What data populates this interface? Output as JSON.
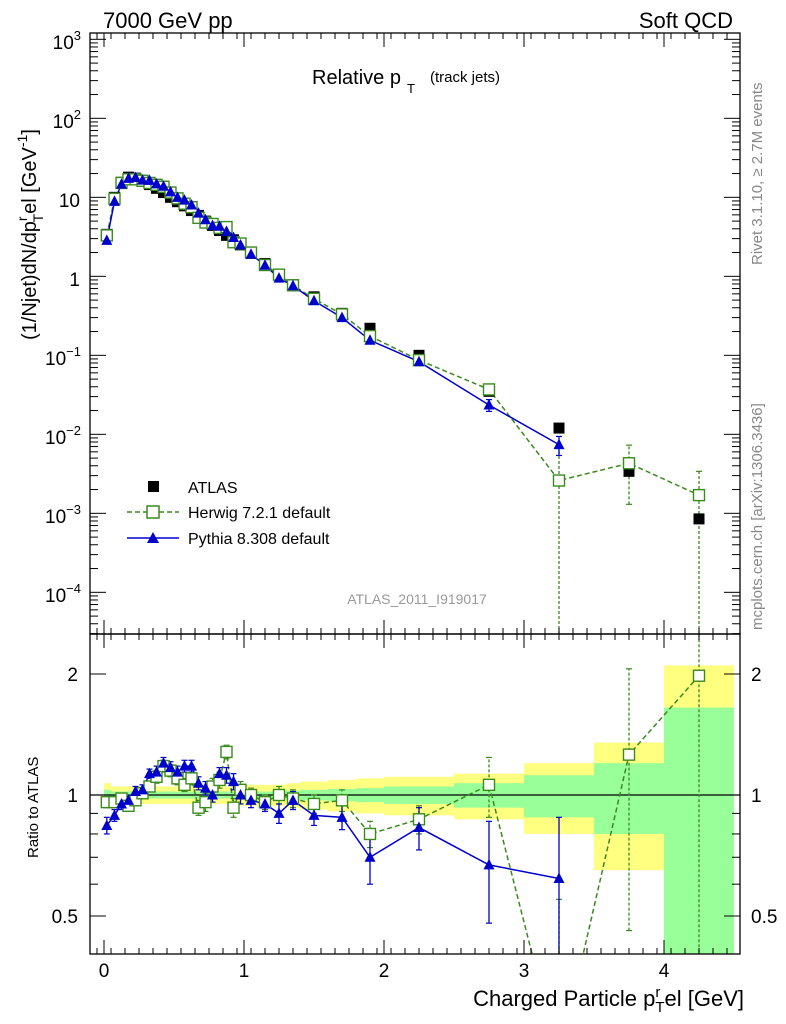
{
  "header": {
    "energy_label": "7000 GeV pp",
    "process_label": "Soft QCD",
    "plot_title_main": "Relative p",
    "plot_title_sub": "T",
    "plot_title_extra": "(track jets)",
    "analysis_id": "ATLAS_2011_I919017",
    "rivet_label": "Rivet 3.1.10, ≥ 2.7M events",
    "mcplots_label": "mcplots.cern.ch [arXiv:1306.3436]"
  },
  "axes": {
    "main_ylabel": "(1/Njet)dN/dp",
    "main_ylabel_sub": "T",
    "main_ylabel_sup": "r",
    "main_ylabel_tail": "el [GeV",
    "main_ylabel_unit_sup": "-1",
    "main_ylabel_close": "]",
    "ratio_ylabel": "Ratio to ATLAS",
    "xlabel": "Charged Particle p",
    "xlabel_sub": "T",
    "xlabel_sup": "r",
    "xlabel_tail": "el [GeV]",
    "main_yticks": [
      {
        "base": "10",
        "exp": "3"
      },
      {
        "base": "10",
        "exp": "2"
      },
      {
        "base": "10",
        "exp": ""
      },
      {
        "base": "1",
        "exp": ""
      },
      {
        "base": "10",
        "exp": "−1"
      },
      {
        "base": "10",
        "exp": "−2"
      },
      {
        "base": "10",
        "exp": "−3"
      },
      {
        "base": "10",
        "exp": "−4"
      }
    ],
    "ratio_yticks": [
      "2",
      "1",
      "0.5"
    ],
    "xticks": [
      "0",
      "1",
      "2",
      "3",
      "4"
    ]
  },
  "legend": {
    "atlas": "ATLAS",
    "herwig": "Herwig 7.2.1 default",
    "pythia": "Pythia 8.308 default"
  },
  "colors": {
    "atlas": "#000000",
    "herwig": "#3a8a1e",
    "pythia": "#0000cc",
    "band_inner": "#99ff99",
    "band_outer": "#ffff80"
  },
  "chart_data": {
    "type": "scatter",
    "x_range": [
      -0.1,
      4.55
    ],
    "y_range_main": [
      3e-05,
      1200
    ],
    "y_scale_main": "log",
    "y_range_ratio": [
      0.35,
      2.3
    ],
    "y_scale_ratio": "log",
    "x": [
      0.02,
      0.075,
      0.125,
      0.175,
      0.225,
      0.275,
      0.325,
      0.375,
      0.425,
      0.475,
      0.525,
      0.575,
      0.625,
      0.675,
      0.725,
      0.775,
      0.825,
      0.875,
      0.925,
      0.975,
      1.05,
      1.15,
      1.25,
      1.35,
      1.5,
      1.7,
      1.9,
      2.25,
      2.75,
      3.25,
      3.75,
      4.25
    ],
    "series": [
      {
        "name": "ATLAS",
        "values": [
          3.4,
          10.0,
          15.5,
          18.0,
          17.5,
          16.0,
          14.5,
          13.0,
          11.5,
          10.0,
          8.8,
          7.8,
          6.8,
          5.9,
          5.0,
          4.4,
          3.8,
          3.3,
          2.9,
          2.5,
          1.95,
          1.45,
          1.05,
          0.78,
          0.55,
          0.34,
          0.22,
          0.1,
          0.035,
          0.012,
          0.0034,
          0.00085
        ]
      },
      {
        "name": "Herwig 7.2.1 default",
        "values": [
          3.3,
          9.6,
          15.2,
          16.9,
          16.9,
          16.2,
          15.2,
          14.4,
          13.6,
          11.5,
          9.7,
          8.3,
          7.5,
          5.5,
          4.8,
          4.6,
          4.1,
          4.2,
          2.7,
          2.6,
          2.0,
          1.39,
          1.05,
          0.77,
          0.52,
          0.33,
          0.175,
          0.087,
          0.037,
          0.0026,
          0.0043,
          0.0017
        ],
        "errors": [
          0.1,
          0.2,
          0.3,
          0.3,
          0.3,
          0.3,
          0.3,
          0.3,
          0.3,
          0.3,
          0.2,
          0.2,
          0.2,
          0.2,
          0.2,
          0.2,
          0.2,
          0.2,
          0.1,
          0.1,
          0.05,
          0.04,
          0.03,
          0.02,
          0.02,
          0.01,
          0.01,
          0.006,
          0.005,
          0.004,
          0.003,
          0.0017
        ]
      },
      {
        "name": "Pythia 8.308 default",
        "values": [
          2.85,
          8.9,
          14.7,
          17.4,
          17.8,
          16.5,
          16.4,
          14.8,
          13.8,
          11.7,
          10.0,
          9.2,
          8.0,
          6.3,
          5.2,
          4.4,
          4.3,
          3.7,
          3.1,
          2.5,
          1.9,
          1.38,
          0.95,
          0.76,
          0.49,
          0.3,
          0.155,
          0.083,
          0.0235,
          0.0074
        ],
        "errors": [
          0.1,
          0.2,
          0.3,
          0.3,
          0.3,
          0.3,
          0.3,
          0.3,
          0.3,
          0.3,
          0.2,
          0.2,
          0.2,
          0.2,
          0.2,
          0.2,
          0.2,
          0.2,
          0.1,
          0.1,
          0.05,
          0.04,
          0.03,
          0.02,
          0.02,
          0.01,
          0.01,
          0.006,
          0.004,
          0.002
        ]
      }
    ],
    "ratio": {
      "herwig": [
        0.96,
        0.96,
        0.98,
        0.94,
        0.97,
        1.01,
        1.05,
        1.11,
        1.18,
        1.15,
        1.1,
        1.06,
        1.1,
        0.93,
        0.96,
        1.05,
        1.09,
        1.28,
        0.93,
        1.03,
        1.0,
        0.96,
        1.0,
        0.98,
        0.95,
        0.97,
        0.8,
        0.87,
        1.06,
        0.22,
        1.26,
        1.98
      ],
      "herwig_err": [
        0.03,
        0.03,
        0.03,
        0.03,
        0.03,
        0.03,
        0.03,
        0.04,
        0.04,
        0.04,
        0.04,
        0.04,
        0.04,
        0.04,
        0.05,
        0.05,
        0.05,
        0.05,
        0.05,
        0.05,
        0.04,
        0.04,
        0.05,
        0.05,
        0.05,
        0.06,
        0.06,
        0.07,
        0.18,
        0.33,
        0.8,
        1.7
      ],
      "pythia": [
        0.84,
        0.89,
        0.95,
        0.97,
        1.02,
        1.03,
        1.13,
        1.14,
        1.2,
        1.17,
        1.14,
        1.18,
        1.18,
        1.07,
        1.04,
        1.0,
        1.13,
        1.12,
        1.08,
        1.0,
        0.97,
        0.95,
        0.9,
        0.97,
        0.89,
        0.88,
        0.7,
        0.83,
        0.67,
        0.62
      ],
      "pythia_err": [
        0.04,
        0.03,
        0.03,
        0.03,
        0.03,
        0.03,
        0.03,
        0.04,
        0.04,
        0.04,
        0.04,
        0.04,
        0.04,
        0.04,
        0.04,
        0.04,
        0.04,
        0.05,
        0.05,
        0.05,
        0.04,
        0.04,
        0.05,
        0.05,
        0.05,
        0.06,
        0.1,
        0.1,
        0.19,
        0.26
      ],
      "band_edges": [
        0.0,
        0.05,
        0.1,
        0.15,
        0.2,
        0.25,
        0.3,
        0.35,
        0.4,
        0.45,
        0.5,
        0.55,
        0.6,
        0.65,
        0.7,
        0.75,
        0.8,
        0.85,
        0.9,
        0.95,
        1.0,
        1.1,
        1.2,
        1.3,
        1.4,
        1.6,
        1.8,
        2.0,
        2.5,
        3.0,
        3.5,
        4.0,
        4.5
      ],
      "band_inner": [
        0.03,
        0.02,
        0.02,
        0.02,
        0.02,
        0.02,
        0.02,
        0.02,
        0.02,
        0.02,
        0.02,
        0.02,
        0.02,
        0.02,
        0.02,
        0.02,
        0.02,
        0.02,
        0.02,
        0.02,
        0.02,
        0.02,
        0.02,
        0.025,
        0.03,
        0.035,
        0.04,
        0.05,
        0.07,
        0.12,
        0.2,
        0.65
      ],
      "band_outer": [
        0.07,
        0.05,
        0.05,
        0.05,
        0.05,
        0.05,
        0.05,
        0.05,
        0.05,
        0.05,
        0.05,
        0.05,
        0.05,
        0.05,
        0.05,
        0.05,
        0.05,
        0.05,
        0.06,
        0.06,
        0.06,
        0.06,
        0.06,
        0.07,
        0.08,
        0.09,
        0.1,
        0.11,
        0.13,
        0.2,
        0.35,
        1.1
      ]
    }
  }
}
